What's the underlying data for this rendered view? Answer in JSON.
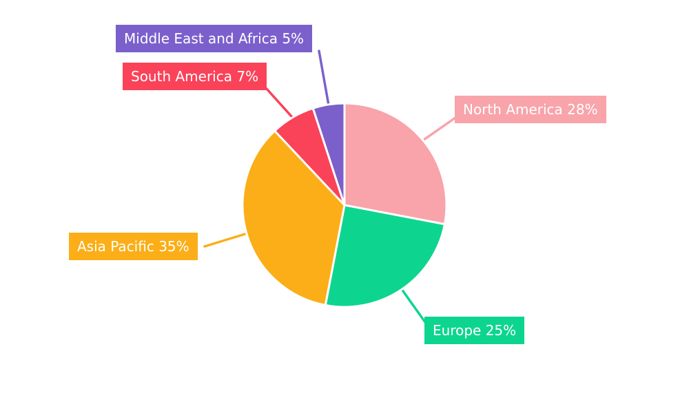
{
  "chart_data": {
    "type": "pie",
    "title": "",
    "categories": [
      "North America",
      "Europe",
      "Asia Pacific",
      "South America",
      "Middle East and Africa"
    ],
    "values": [
      28,
      25,
      35,
      7,
      5
    ],
    "unit": "%",
    "colors": [
      "#F8A4AA",
      "#0DD58F",
      "#FBAE17",
      "#FA4259",
      "#7B60CC"
    ],
    "slice_border_color": "#FFFFFF",
    "label_text_color": "#FFFFFF",
    "background": "#FFFFFF",
    "start_angle_deg": 0,
    "direction": "clockwise",
    "legend_position": "outside-callout-labels"
  },
  "callouts": [
    {
      "text": "North America 28%",
      "color": "#F8A4AA"
    },
    {
      "text": "Europe 25%",
      "color": "#0DD58F"
    },
    {
      "text": "Asia Pacific 35%",
      "color": "#FBAE17"
    },
    {
      "text": "South America 7%",
      "color": "#FA4259"
    },
    {
      "text": "Middle East and Africa 5%",
      "color": "#7B60CC"
    }
  ]
}
